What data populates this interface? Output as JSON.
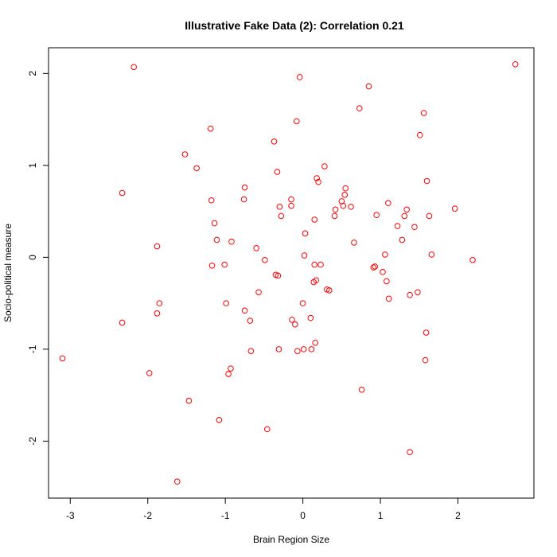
{
  "chart_data": {
    "type": "scatter",
    "title": "Illustrative Fake Data (2): Correlation 0.21",
    "xlabel": "Brain Region Size",
    "ylabel": "Socio-political measure",
    "xlim": [
      -3.28,
      2.98
    ],
    "ylim": [
      -2.62,
      2.28
    ],
    "xticks": [
      -3,
      -2,
      -1,
      0,
      1,
      2
    ],
    "yticks": [
      -2,
      -1,
      0,
      1,
      2
    ],
    "marker_color": "#ff0000",
    "grid": false,
    "points": [
      [
        -3.1,
        -1.1
      ],
      [
        -2.33,
        0.7
      ],
      [
        -2.33,
        -0.71
      ],
      [
        -2.18,
        2.07
      ],
      [
        -1.98,
        -1.26
      ],
      [
        -1.88,
        0.12
      ],
      [
        -1.88,
        -0.61
      ],
      [
        -1.85,
        -0.5
      ],
      [
        -1.62,
        -2.44
      ],
      [
        -1.52,
        1.12
      ],
      [
        -1.47,
        -1.56
      ],
      [
        -1.37,
        0.97
      ],
      [
        -1.19,
        1.4
      ],
      [
        -1.18,
        0.62
      ],
      [
        -1.17,
        -0.09
      ],
      [
        -1.14,
        0.37
      ],
      [
        -1.11,
        0.19
      ],
      [
        -1.08,
        -1.77
      ],
      [
        -1.01,
        -0.08
      ],
      [
        -0.99,
        -0.5
      ],
      [
        -0.96,
        -1.27
      ],
      [
        -0.93,
        -1.21
      ],
      [
        -0.92,
        0.17
      ],
      [
        -0.76,
        0.63
      ],
      [
        -0.75,
        0.76
      ],
      [
        -0.75,
        -0.58
      ],
      [
        -0.68,
        -0.69
      ],
      [
        -0.67,
        -1.02
      ],
      [
        -0.6,
        0.1
      ],
      [
        -0.57,
        -0.38
      ],
      [
        -0.49,
        -0.03
      ],
      [
        -0.46,
        -1.87
      ],
      [
        -0.37,
        1.26
      ],
      [
        -0.35,
        -0.19
      ],
      [
        -0.33,
        0.93
      ],
      [
        -0.32,
        -0.2
      ],
      [
        -0.31,
        -1.0
      ],
      [
        -0.3,
        0.55
      ],
      [
        -0.28,
        0.45
      ],
      [
        -0.15,
        0.63
      ],
      [
        -0.15,
        0.56
      ],
      [
        -0.14,
        -0.68
      ],
      [
        -0.1,
        -0.73
      ],
      [
        -0.08,
        1.48
      ],
      [
        -0.07,
        -1.02
      ],
      [
        -0.04,
        1.96
      ],
      [
        0.0,
        -0.5
      ],
      [
        0.01,
        -1.0
      ],
      [
        0.02,
        0.02
      ],
      [
        0.03,
        0.26
      ],
      [
        0.1,
        -0.66
      ],
      [
        0.11,
        -1.0
      ],
      [
        0.14,
        -0.27
      ],
      [
        0.15,
        0.41
      ],
      [
        0.15,
        -0.08
      ],
      [
        0.16,
        -0.93
      ],
      [
        0.17,
        -0.25
      ],
      [
        0.18,
        0.86
      ],
      [
        0.2,
        0.82
      ],
      [
        0.23,
        -0.08
      ],
      [
        0.28,
        0.99
      ],
      [
        0.31,
        -0.35
      ],
      [
        0.34,
        -0.36
      ],
      [
        0.41,
        0.45
      ],
      [
        0.42,
        0.52
      ],
      [
        0.5,
        0.61
      ],
      [
        0.52,
        0.56
      ],
      [
        0.54,
        0.68
      ],
      [
        0.55,
        0.75
      ],
      [
        0.62,
        0.55
      ],
      [
        0.66,
        0.16
      ],
      [
        0.73,
        1.62
      ],
      [
        0.76,
        -1.44
      ],
      [
        0.85,
        1.86
      ],
      [
        0.91,
        -0.11
      ],
      [
        0.93,
        -0.1
      ],
      [
        0.95,
        0.46
      ],
      [
        1.03,
        -0.16
      ],
      [
        1.06,
        0.03
      ],
      [
        1.08,
        -0.26
      ],
      [
        1.1,
        0.59
      ],
      [
        1.11,
        -0.45
      ],
      [
        1.22,
        0.34
      ],
      [
        1.28,
        0.19
      ],
      [
        1.31,
        0.45
      ],
      [
        1.34,
        0.52
      ],
      [
        1.38,
        -0.41
      ],
      [
        1.38,
        -2.12
      ],
      [
        1.44,
        0.33
      ],
      [
        1.48,
        -0.38
      ],
      [
        1.51,
        1.33
      ],
      [
        1.56,
        1.57
      ],
      [
        1.58,
        -1.12
      ],
      [
        1.59,
        -0.82
      ],
      [
        1.6,
        0.83
      ],
      [
        1.63,
        0.45
      ],
      [
        1.66,
        0.03
      ],
      [
        1.96,
        0.53
      ],
      [
        2.19,
        -0.03
      ],
      [
        2.74,
        2.1
      ]
    ]
  }
}
